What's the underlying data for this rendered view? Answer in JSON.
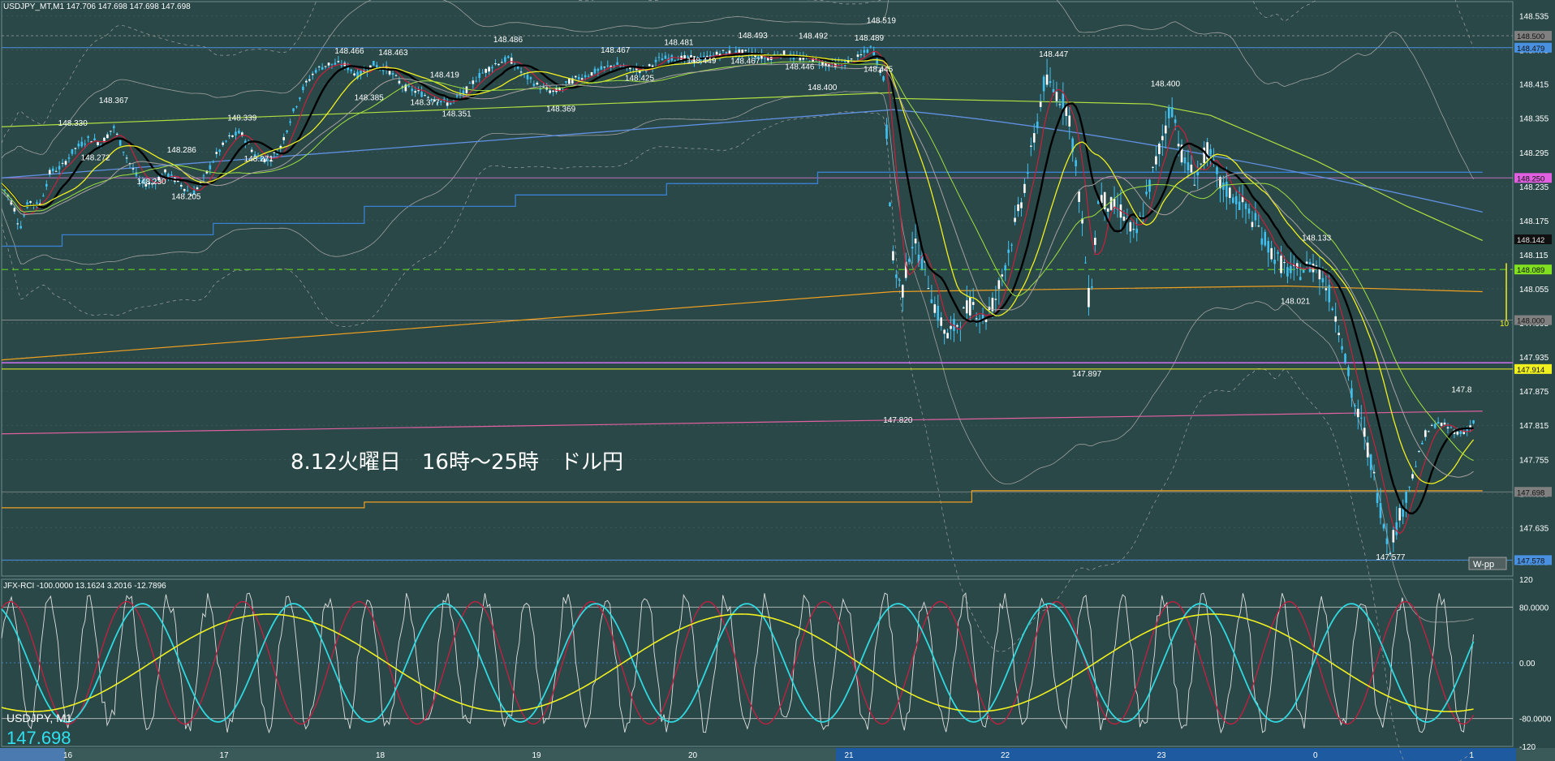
{
  "window": {
    "header": "USDJPY_MT,M1  147.706 147.698 147.698 147.698",
    "symbol_label": "USDJPY, M1",
    "last_price": "147.698",
    "annotation": "8.12火曜日　16時～25時　ドル円",
    "wpp_label": "W-pp",
    "pivot_label": "10",
    "rci_header": "JFX-RCI -100.0000 13.1624 3.2016 -12.7896"
  },
  "colors": {
    "background": "#2a4848",
    "grid": "#6a8484",
    "sma_fast": "#c8203c",
    "sma_black": "#000000",
    "sma_yellow": "#f0f020",
    "sma_green": "#a0e040",
    "sma_gray": "#a8a0a0",
    "blue_long": "#6090e0",
    "orange": "#f0a020",
    "pink": "#e060a0",
    "rci_white": "#e0e0e0",
    "rci_red": "#c02040",
    "rci_cyan": "#30d8e0",
    "rci_yellow": "#f0f020"
  },
  "chart_data": [
    {
      "type": "candlestick",
      "title": "USDJPY_MT,M1",
      "y_axis_ticks": [
        "148.535",
        "148.475",
        "148.415",
        "148.355",
        "148.295",
        "148.235",
        "148.175",
        "148.115",
        "148.055",
        "147.995",
        "147.935",
        "147.875",
        "147.815",
        "147.755",
        "147.695",
        "147.635",
        "147.575"
      ],
      "ylim": [
        147.55,
        148.56
      ],
      "x_axis_ticks": [
        "16",
        "17",
        "18",
        "19",
        "20",
        "21",
        "22",
        "23",
        "0",
        "1"
      ],
      "price_tags": [
        {
          "value": "148.500",
          "color": "#808080",
          "price": 148.5
        },
        {
          "value": "148.479",
          "color": "#4a90e0",
          "price": 148.479
        },
        {
          "value": "148.250",
          "color": "#e060e0",
          "price": 148.25
        },
        {
          "value": "148.142",
          "color": "#101010",
          "price": 148.142
        },
        {
          "value": "148.089",
          "color": "#80e020",
          "price": 148.089
        },
        {
          "value": "148.000",
          "color": "#808080",
          "price": 148.0
        },
        {
          "value": "147.914",
          "color": "#f0f020",
          "price": 147.914
        },
        {
          "value": "147.698",
          "color": "#808080",
          "price": 147.698
        },
        {
          "value": "147.578",
          "color": "#4a90e0",
          "price": 147.578
        }
      ],
      "annotations": [
        {
          "text": "148.519",
          "x": 0.581,
          "price": 148.519
        },
        {
          "text": "148.486",
          "x": 0.334,
          "price": 148.486
        },
        {
          "text": "148.466",
          "x": 0.229,
          "price": 148.466
        },
        {
          "text": "148.463",
          "x": 0.258,
          "price": 148.463
        },
        {
          "text": "148.467",
          "x": 0.405,
          "price": 148.467
        },
        {
          "text": "148.481",
          "x": 0.447,
          "price": 148.481
        },
        {
          "text": "148.493",
          "x": 0.496,
          "price": 148.493
        },
        {
          "text": "148.492",
          "x": 0.536,
          "price": 148.492
        },
        {
          "text": "148.489",
          "x": 0.573,
          "price": 148.489
        },
        {
          "text": "148.449",
          "x": 0.462,
          "price": 148.449
        },
        {
          "text": "148.467",
          "x": 0.491,
          "price": 148.448
        },
        {
          "text": "148.446",
          "x": 0.527,
          "price": 148.438
        },
        {
          "text": "148.445",
          "x": 0.579,
          "price": 148.434
        },
        {
          "text": "148.425",
          "x": 0.421,
          "price": 148.418
        },
        {
          "text": "148.419",
          "x": 0.292,
          "price": 148.424
        },
        {
          "text": "148.385",
          "x": 0.242,
          "price": 148.384
        },
        {
          "text": "148.377",
          "x": 0.279,
          "price": 148.375
        },
        {
          "text": "148.351",
          "x": 0.3,
          "price": 148.355
        },
        {
          "text": "148.369",
          "x": 0.369,
          "price": 148.364
        },
        {
          "text": "148.400",
          "x": 0.542,
          "price": 148.402
        },
        {
          "text": "148.367",
          "x": 0.073,
          "price": 148.379
        },
        {
          "text": "148.339",
          "x": 0.158,
          "price": 148.348
        },
        {
          "text": "148.330",
          "x": 0.046,
          "price": 148.339
        },
        {
          "text": "148.286",
          "x": 0.118,
          "price": 148.292
        },
        {
          "text": "148.272",
          "x": 0.061,
          "price": 148.278
        },
        {
          "text": "148.271",
          "x": 0.169,
          "price": 148.276
        },
        {
          "text": "148.230",
          "x": 0.098,
          "price": 148.236
        },
        {
          "text": "148.205",
          "x": 0.121,
          "price": 148.21
        },
        {
          "text": "148.447",
          "x": 0.695,
          "price": 148.46
        },
        {
          "text": "148.400",
          "x": 0.769,
          "price": 148.408
        },
        {
          "text": "148.133",
          "x": 0.869,
          "price": 148.137
        },
        {
          "text": "148.021",
          "x": 0.855,
          "price": 148.026
        },
        {
          "text": "147.897",
          "x": 0.717,
          "price": 147.898
        },
        {
          "text": "147.820",
          "x": 0.592,
          "price": 147.817
        },
        {
          "text": "147.577",
          "x": 0.918,
          "price": 147.576
        },
        {
          "text": "147.8",
          "x": 0.968,
          "price": 147.87
        }
      ],
      "candles_approx": [
        [
          0.0,
          148.24
        ],
        [
          0.008,
          148.2
        ],
        [
          0.012,
          148.16
        ],
        [
          0.018,
          148.21
        ],
        [
          0.025,
          148.2
        ],
        [
          0.032,
          148.26
        ],
        [
          0.04,
          148.27
        ],
        [
          0.048,
          148.3
        ],
        [
          0.058,
          148.32
        ],
        [
          0.066,
          148.31
        ],
        [
          0.074,
          148.34
        ],
        [
          0.082,
          148.29
        ],
        [
          0.092,
          148.24
        ],
        [
          0.1,
          148.24
        ],
        [
          0.108,
          148.26
        ],
        [
          0.118,
          148.24
        ],
        [
          0.126,
          148.22
        ],
        [
          0.134,
          148.25
        ],
        [
          0.142,
          148.29
        ],
        [
          0.15,
          148.32
        ],
        [
          0.158,
          148.33
        ],
        [
          0.168,
          148.29
        ],
        [
          0.176,
          148.28
        ],
        [
          0.184,
          148.3
        ],
        [
          0.192,
          148.36
        ],
        [
          0.2,
          148.41
        ],
        [
          0.208,
          148.44
        ],
        [
          0.216,
          148.45
        ],
        [
          0.226,
          148.45
        ],
        [
          0.236,
          148.43
        ],
        [
          0.246,
          148.45
        ],
        [
          0.256,
          148.44
        ],
        [
          0.266,
          148.41
        ],
        [
          0.276,
          148.4
        ],
        [
          0.286,
          148.39
        ],
        [
          0.296,
          148.38
        ],
        [
          0.306,
          148.4
        ],
        [
          0.316,
          148.43
        ],
        [
          0.326,
          148.45
        ],
        [
          0.336,
          148.46
        ],
        [
          0.346,
          148.43
        ],
        [
          0.356,
          148.41
        ],
        [
          0.366,
          148.4
        ],
        [
          0.376,
          148.42
        ],
        [
          0.386,
          148.43
        ],
        [
          0.396,
          148.44
        ],
        [
          0.406,
          148.45
        ],
        [
          0.416,
          148.44
        ],
        [
          0.426,
          148.44
        ],
        [
          0.436,
          148.46
        ],
        [
          0.446,
          148.46
        ],
        [
          0.456,
          148.46
        ],
        [
          0.466,
          148.46
        ],
        [
          0.476,
          148.47
        ],
        [
          0.486,
          148.47
        ],
        [
          0.496,
          148.47
        ],
        [
          0.506,
          148.46
        ],
        [
          0.516,
          148.47
        ],
        [
          0.526,
          148.46
        ],
        [
          0.536,
          148.46
        ],
        [
          0.546,
          148.45
        ],
        [
          0.556,
          148.45
        ],
        [
          0.566,
          148.46
        ],
        [
          0.576,
          148.48
        ],
        [
          0.584,
          148.42
        ],
        [
          0.59,
          148.1
        ],
        [
          0.596,
          148.05
        ],
        [
          0.602,
          148.14
        ],
        [
          0.61,
          148.1
        ],
        [
          0.618,
          148.02
        ],
        [
          0.626,
          147.97
        ],
        [
          0.634,
          148.0
        ],
        [
          0.642,
          148.03
        ],
        [
          0.65,
          148.0
        ],
        [
          0.658,
          148.04
        ],
        [
          0.666,
          148.12
        ],
        [
          0.674,
          148.2
        ],
        [
          0.682,
          148.3
        ],
        [
          0.69,
          148.42
        ],
        [
          0.698,
          148.4
        ],
        [
          0.706,
          148.37
        ],
        [
          0.714,
          148.2
        ],
        [
          0.72,
          148.02
        ],
        [
          0.726,
          148.22
        ],
        [
          0.734,
          148.2
        ],
        [
          0.742,
          148.19
        ],
        [
          0.75,
          148.14
        ],
        [
          0.758,
          148.22
        ],
        [
          0.766,
          148.3
        ],
        [
          0.774,
          148.38
        ],
        [
          0.782,
          148.28
        ],
        [
          0.79,
          148.25
        ],
        [
          0.798,
          148.3
        ],
        [
          0.806,
          148.24
        ],
        [
          0.814,
          148.22
        ],
        [
          0.822,
          148.2
        ],
        [
          0.83,
          148.17
        ],
        [
          0.838,
          148.13
        ],
        [
          0.846,
          148.1
        ],
        [
          0.854,
          148.08
        ],
        [
          0.862,
          148.09
        ],
        [
          0.87,
          148.1
        ],
        [
          0.878,
          148.05
        ],
        [
          0.886,
          147.98
        ],
        [
          0.894,
          147.86
        ],
        [
          0.902,
          147.8
        ],
        [
          0.91,
          147.7
        ],
        [
          0.918,
          147.6
        ],
        [
          0.926,
          147.66
        ],
        [
          0.934,
          147.73
        ],
        [
          0.942,
          147.8
        ],
        [
          0.95,
          147.82
        ],
        [
          0.958,
          147.81
        ],
        [
          0.966,
          147.8
        ],
        [
          0.974,
          147.82
        ]
      ]
    },
    {
      "type": "line",
      "title": "JFX-RCI",
      "y_axis_ticks": [
        "120",
        "80.0000",
        "0.00",
        "-80.0000",
        "-120"
      ],
      "ylim": [
        -120,
        120
      ],
      "levels": [
        80,
        0,
        -80
      ]
    }
  ]
}
